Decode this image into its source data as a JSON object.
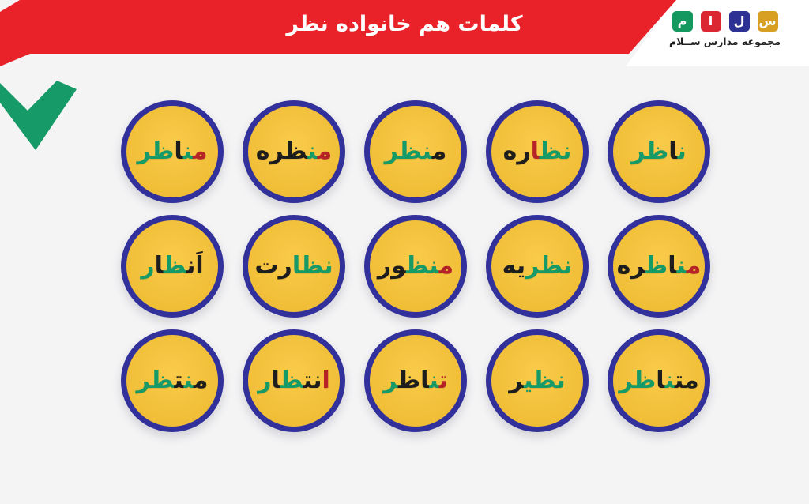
{
  "page": {
    "background": "#f4f4f5"
  },
  "header": {
    "title": "کلمات هم خانواده نظر",
    "banner_color": "#e92129",
    "title_color": "#ffffff",
    "logo": {
      "caption": "مجموعه مدارس ســلام",
      "squares": [
        {
          "letter": "س",
          "color": "#d8a023"
        },
        {
          "letter": "ل",
          "color": "#2d3193"
        },
        {
          "letter": "ا",
          "color": "#da2732"
        },
        {
          "letter": "م",
          "color": "#13995f"
        }
      ]
    }
  },
  "decoration": {
    "chevron_color": "#169a67"
  },
  "circles": {
    "fill": "#f9c331",
    "border_color": "#32319b",
    "letter_palette": {
      "g": "#169a67",
      "k": "#1d1d1d",
      "r": "#b52328"
    },
    "rows": [
      [
        {
          "word": "مناظر",
          "letters": [
            {
              "ch": "م",
              "c": "r"
            },
            {
              "ch": "ن",
              "c": "g"
            },
            {
              "ch": "ا",
              "c": "k"
            },
            {
              "ch": "ظ",
              "c": "g"
            },
            {
              "ch": "ر",
              "c": "g"
            }
          ]
        },
        {
          "word": "منظره",
          "letters": [
            {
              "ch": "م",
              "c": "r"
            },
            {
              "ch": "ن",
              "c": "g"
            },
            {
              "ch": "ظ",
              "c": "k"
            },
            {
              "ch": "ر",
              "c": "k"
            },
            {
              "ch": "ه",
              "c": "k"
            }
          ]
        },
        {
          "word": "منظر",
          "letters": [
            {
              "ch": "م",
              "c": "k"
            },
            {
              "ch": "ن",
              "c": "g"
            },
            {
              "ch": "ظ",
              "c": "g"
            },
            {
              "ch": "ر",
              "c": "g"
            }
          ]
        },
        {
          "word": "نظاره",
          "letters": [
            {
              "ch": "ن",
              "c": "g"
            },
            {
              "ch": "ظ",
              "c": "g"
            },
            {
              "ch": "ا",
              "c": "r"
            },
            {
              "ch": "ر",
              "c": "k"
            },
            {
              "ch": "ه",
              "c": "k"
            }
          ]
        },
        {
          "word": "ناظر",
          "letters": [
            {
              "ch": "ن",
              "c": "g"
            },
            {
              "ch": "ا",
              "c": "k"
            },
            {
              "ch": "ظ",
              "c": "g"
            },
            {
              "ch": "ر",
              "c": "g"
            }
          ]
        }
      ],
      [
        {
          "word": "اَنظار",
          "letters": [
            {
              "ch": "اَ",
              "c": "k"
            },
            {
              "ch": "ن",
              "c": "k"
            },
            {
              "ch": "ظ",
              "c": "g"
            },
            {
              "ch": "ا",
              "c": "k"
            },
            {
              "ch": "ر",
              "c": "g"
            }
          ]
        },
        {
          "word": "نظارت",
          "letters": [
            {
              "ch": "ن",
              "c": "g"
            },
            {
              "ch": "ظ",
              "c": "g"
            },
            {
              "ch": "ا",
              "c": "g"
            },
            {
              "ch": "ر",
              "c": "k"
            },
            {
              "ch": "ت",
              "c": "k"
            }
          ]
        },
        {
          "word": "منظور",
          "letters": [
            {
              "ch": "م",
              "c": "r"
            },
            {
              "ch": "ن",
              "c": "g"
            },
            {
              "ch": "ظ",
              "c": "g"
            },
            {
              "ch": "و",
              "c": "k"
            },
            {
              "ch": "ر",
              "c": "k"
            }
          ]
        },
        {
          "word": "نظریه",
          "letters": [
            {
              "ch": "ن",
              "c": "g"
            },
            {
              "ch": "ظ",
              "c": "g"
            },
            {
              "ch": "ر",
              "c": "g"
            },
            {
              "ch": "ی",
              "c": "k"
            },
            {
              "ch": "ه",
              "c": "k"
            }
          ]
        },
        {
          "word": "مناظره",
          "letters": [
            {
              "ch": "م",
              "c": "r"
            },
            {
              "ch": "ن",
              "c": "g"
            },
            {
              "ch": "ا",
              "c": "k"
            },
            {
              "ch": "ظ",
              "c": "g"
            },
            {
              "ch": "ر",
              "c": "k"
            },
            {
              "ch": "ه",
              "c": "k"
            }
          ]
        }
      ],
      [
        {
          "word": "منتظر",
          "letters": [
            {
              "ch": "م",
              "c": "k"
            },
            {
              "ch": "ن",
              "c": "g"
            },
            {
              "ch": "ت",
              "c": "k"
            },
            {
              "ch": "ظ",
              "c": "g"
            },
            {
              "ch": "ر",
              "c": "g"
            }
          ]
        },
        {
          "word": "انتظار",
          "letters": [
            {
              "ch": "ا",
              "c": "r"
            },
            {
              "ch": "ن",
              "c": "k"
            },
            {
              "ch": "ت",
              "c": "k"
            },
            {
              "ch": "ظ",
              "c": "g"
            },
            {
              "ch": "ا",
              "c": "k"
            },
            {
              "ch": "ر",
              "c": "g"
            }
          ]
        },
        {
          "word": "تناظر",
          "letters": [
            {
              "ch": "ت",
              "c": "r"
            },
            {
              "ch": "ن",
              "c": "g"
            },
            {
              "ch": "ا",
              "c": "k"
            },
            {
              "ch": "ظ",
              "c": "k"
            },
            {
              "ch": "ر",
              "c": "g"
            }
          ]
        },
        {
          "word": "نظیر",
          "letters": [
            {
              "ch": "ن",
              "c": "g"
            },
            {
              "ch": "ظ",
              "c": "g"
            },
            {
              "ch": "ی",
              "c": "g"
            },
            {
              "ch": "ر",
              "c": "k"
            }
          ]
        },
        {
          "word": "متناظر",
          "letters": [
            {
              "ch": "م",
              "c": "k"
            },
            {
              "ch": "ت",
              "c": "k"
            },
            {
              "ch": "ن",
              "c": "g"
            },
            {
              "ch": "ا",
              "c": "k"
            },
            {
              "ch": "ظ",
              "c": "g"
            },
            {
              "ch": "ر",
              "c": "g"
            }
          ]
        }
      ]
    ]
  }
}
